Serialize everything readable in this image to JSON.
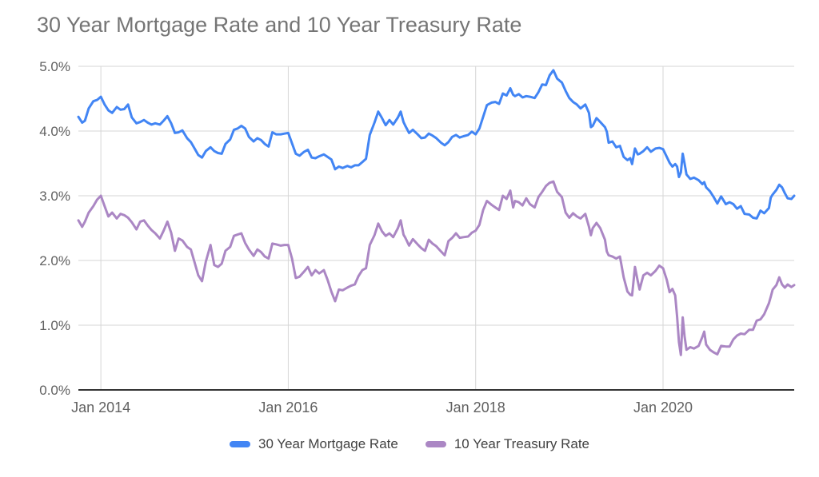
{
  "chart_data": {
    "type": "line",
    "title": "30 Year Mortgage Rate and 10 Year Treasury Rate",
    "xlabel": "",
    "ylabel": "",
    "xlim": [
      2013.76,
      2021.4
    ],
    "ylim": [
      0,
      5
    ],
    "grid": true,
    "legend_position": "bottom",
    "background_color": "#ffffff",
    "x_ticks": [
      {
        "value": 2014,
        "label": "Jan 2014"
      },
      {
        "value": 2016,
        "label": "Jan 2016"
      },
      {
        "value": 2018,
        "label": "Jan 2018"
      },
      {
        "value": 2020,
        "label": "Jan 2020"
      }
    ],
    "y_ticks": [
      {
        "value": 0,
        "label": "0.0%"
      },
      {
        "value": 1,
        "label": "1.0%"
      },
      {
        "value": 2,
        "label": "2.0%"
      },
      {
        "value": 3,
        "label": "3.0%"
      },
      {
        "value": 4,
        "label": "4.0%"
      },
      {
        "value": 5,
        "label": "5.0%"
      }
    ],
    "x": [
      2013.76,
      2013.8,
      2013.83,
      2013.87,
      2013.92,
      2013.96,
      2014.0,
      2014.04,
      2014.08,
      2014.12,
      2014.17,
      2014.21,
      2014.25,
      2014.29,
      2014.33,
      2014.38,
      2014.42,
      2014.46,
      2014.5,
      2014.54,
      2014.58,
      2014.63,
      2014.67,
      2014.71,
      2014.75,
      2014.79,
      2014.83,
      2014.87,
      2014.92,
      2014.96,
      2015.0,
      2015.04,
      2015.08,
      2015.12,
      2015.17,
      2015.21,
      2015.25,
      2015.29,
      2015.33,
      2015.38,
      2015.42,
      2015.46,
      2015.5,
      2015.54,
      2015.58,
      2015.63,
      2015.67,
      2015.71,
      2015.75,
      2015.79,
      2015.83,
      2015.87,
      2015.92,
      2015.96,
      2016.0,
      2016.04,
      2016.08,
      2016.12,
      2016.17,
      2016.21,
      2016.25,
      2016.29,
      2016.33,
      2016.38,
      2016.42,
      2016.46,
      2016.5,
      2016.54,
      2016.58,
      2016.63,
      2016.67,
      2016.71,
      2016.75,
      2016.79,
      2016.83,
      2016.87,
      2016.92,
      2016.96,
      2017.0,
      2017.04,
      2017.08,
      2017.12,
      2017.17,
      2017.2,
      2017.23,
      2017.25,
      2017.29,
      2017.33,
      2017.38,
      2017.42,
      2017.46,
      2017.5,
      2017.54,
      2017.58,
      2017.63,
      2017.67,
      2017.71,
      2017.75,
      2017.79,
      2017.83,
      2017.87,
      2017.92,
      2017.96,
      2018.0,
      2018.04,
      2018.08,
      2018.12,
      2018.17,
      2018.21,
      2018.25,
      2018.29,
      2018.33,
      2018.37,
      2018.4,
      2018.42,
      2018.46,
      2018.5,
      2018.54,
      2018.58,
      2018.63,
      2018.67,
      2018.71,
      2018.75,
      2018.79,
      2018.83,
      2018.87,
      2018.92,
      2018.96,
      2019.0,
      2019.04,
      2019.08,
      2019.12,
      2019.17,
      2019.21,
      2019.23,
      2019.25,
      2019.29,
      2019.33,
      2019.38,
      2019.4,
      2019.42,
      2019.46,
      2019.5,
      2019.54,
      2019.58,
      2019.62,
      2019.65,
      2019.67,
      2019.7,
      2019.73,
      2019.75,
      2019.79,
      2019.83,
      2019.87,
      2019.92,
      2019.96,
      2020.0,
      2020.04,
      2020.07,
      2020.1,
      2020.13,
      2020.15,
      2020.17,
      2020.19,
      2020.21,
      2020.23,
      2020.25,
      2020.29,
      2020.33,
      2020.38,
      2020.42,
      2020.44,
      2020.46,
      2020.5,
      2020.54,
      2020.58,
      2020.62,
      2020.67,
      2020.71,
      2020.75,
      2020.79,
      2020.83,
      2020.87,
      2020.92,
      2020.96,
      2021.0,
      2021.04,
      2021.08,
      2021.13,
      2021.15,
      2021.17,
      2021.21,
      2021.24,
      2021.27,
      2021.3,
      2021.33,
      2021.37,
      2021.4
    ],
    "series": [
      {
        "id": "mortgage",
        "name": "30 Year Mortgage Rate",
        "color": "#4285f4",
        "values": [
          4.22,
          4.13,
          4.16,
          4.35,
          4.46,
          4.48,
          4.53,
          4.41,
          4.32,
          4.28,
          4.37,
          4.33,
          4.34,
          4.41,
          4.21,
          4.12,
          4.14,
          4.17,
          4.13,
          4.1,
          4.12,
          4.1,
          4.16,
          4.23,
          4.12,
          3.97,
          3.98,
          4.01,
          3.89,
          3.83,
          3.73,
          3.63,
          3.59,
          3.69,
          3.75,
          3.69,
          3.66,
          3.65,
          3.8,
          3.87,
          4.02,
          4.04,
          4.08,
          4.04,
          3.91,
          3.84,
          3.89,
          3.86,
          3.8,
          3.76,
          3.98,
          3.95,
          3.95,
          3.96,
          3.97,
          3.81,
          3.65,
          3.62,
          3.68,
          3.71,
          3.59,
          3.58,
          3.61,
          3.64,
          3.6,
          3.56,
          3.41,
          3.45,
          3.43,
          3.46,
          3.44,
          3.47,
          3.47,
          3.52,
          3.57,
          3.94,
          4.13,
          4.3,
          4.2,
          4.09,
          4.17,
          4.1,
          4.21,
          4.3,
          4.14,
          4.08,
          3.97,
          4.02,
          3.95,
          3.89,
          3.9,
          3.96,
          3.93,
          3.89,
          3.82,
          3.78,
          3.83,
          3.91,
          3.94,
          3.9,
          3.92,
          3.94,
          3.99,
          3.95,
          4.04,
          4.22,
          4.4,
          4.44,
          4.45,
          4.42,
          4.58,
          4.55,
          4.66,
          4.56,
          4.54,
          4.57,
          4.52,
          4.54,
          4.53,
          4.51,
          4.6,
          4.72,
          4.71,
          4.86,
          4.94,
          4.81,
          4.75,
          4.62,
          4.51,
          4.45,
          4.41,
          4.35,
          4.41,
          4.28,
          4.06,
          4.08,
          4.2,
          4.14,
          4.06,
          3.99,
          3.82,
          3.84,
          3.75,
          3.77,
          3.6,
          3.55,
          3.58,
          3.49,
          3.73,
          3.64,
          3.65,
          3.69,
          3.75,
          3.68,
          3.73,
          3.74,
          3.72,
          3.6,
          3.51,
          3.45,
          3.49,
          3.45,
          3.29,
          3.36,
          3.65,
          3.5,
          3.33,
          3.26,
          3.28,
          3.24,
          3.18,
          3.21,
          3.13,
          3.07,
          2.98,
          2.88,
          2.99,
          2.87,
          2.9,
          2.87,
          2.8,
          2.84,
          2.72,
          2.71,
          2.66,
          2.65,
          2.77,
          2.73,
          2.81,
          2.97,
          3.02,
          3.09,
          3.17,
          3.13,
          3.04,
          2.96,
          2.95,
          3.0
        ]
      },
      {
        "id": "treasury",
        "name": "10 Year Treasury Rate",
        "color": "#ab87c4",
        "values": [
          2.62,
          2.52,
          2.6,
          2.74,
          2.84,
          2.94,
          3.0,
          2.84,
          2.68,
          2.74,
          2.65,
          2.72,
          2.7,
          2.66,
          2.59,
          2.48,
          2.6,
          2.62,
          2.54,
          2.47,
          2.42,
          2.34,
          2.46,
          2.6,
          2.43,
          2.15,
          2.34,
          2.31,
          2.21,
          2.17,
          1.97,
          1.77,
          1.68,
          1.98,
          2.24,
          1.93,
          1.9,
          1.95,
          2.15,
          2.21,
          2.38,
          2.4,
          2.42,
          2.27,
          2.17,
          2.07,
          2.17,
          2.13,
          2.06,
          2.03,
          2.26,
          2.25,
          2.23,
          2.24,
          2.24,
          2.03,
          1.73,
          1.75,
          1.83,
          1.9,
          1.77,
          1.85,
          1.8,
          1.85,
          1.7,
          1.52,
          1.37,
          1.55,
          1.54,
          1.58,
          1.61,
          1.63,
          1.76,
          1.85,
          1.88,
          2.24,
          2.39,
          2.57,
          2.45,
          2.38,
          2.42,
          2.36,
          2.5,
          2.62,
          2.4,
          2.35,
          2.23,
          2.33,
          2.25,
          2.19,
          2.15,
          2.32,
          2.26,
          2.22,
          2.14,
          2.08,
          2.3,
          2.35,
          2.42,
          2.35,
          2.36,
          2.37,
          2.43,
          2.46,
          2.55,
          2.78,
          2.92,
          2.86,
          2.82,
          2.78,
          3.0,
          2.95,
          3.08,
          2.82,
          2.92,
          2.9,
          2.85,
          2.96,
          2.87,
          2.82,
          2.98,
          3.06,
          3.15,
          3.2,
          3.22,
          3.06,
          2.98,
          2.74,
          2.66,
          2.73,
          2.68,
          2.65,
          2.72,
          2.52,
          2.39,
          2.5,
          2.58,
          2.5,
          2.32,
          2.14,
          2.08,
          2.06,
          2.03,
          2.06,
          1.74,
          1.52,
          1.47,
          1.46,
          1.9,
          1.68,
          1.55,
          1.77,
          1.81,
          1.77,
          1.84,
          1.92,
          1.88,
          1.7,
          1.51,
          1.56,
          1.46,
          1.13,
          0.74,
          0.54,
          1.12,
          0.83,
          0.62,
          0.66,
          0.64,
          0.68,
          0.82,
          0.9,
          0.7,
          0.62,
          0.58,
          0.55,
          0.68,
          0.67,
          0.67,
          0.78,
          0.84,
          0.87,
          0.86,
          0.93,
          0.93,
          1.07,
          1.09,
          1.17,
          1.34,
          1.44,
          1.55,
          1.62,
          1.74,
          1.63,
          1.58,
          1.63,
          1.59,
          1.62
        ]
      }
    ]
  }
}
